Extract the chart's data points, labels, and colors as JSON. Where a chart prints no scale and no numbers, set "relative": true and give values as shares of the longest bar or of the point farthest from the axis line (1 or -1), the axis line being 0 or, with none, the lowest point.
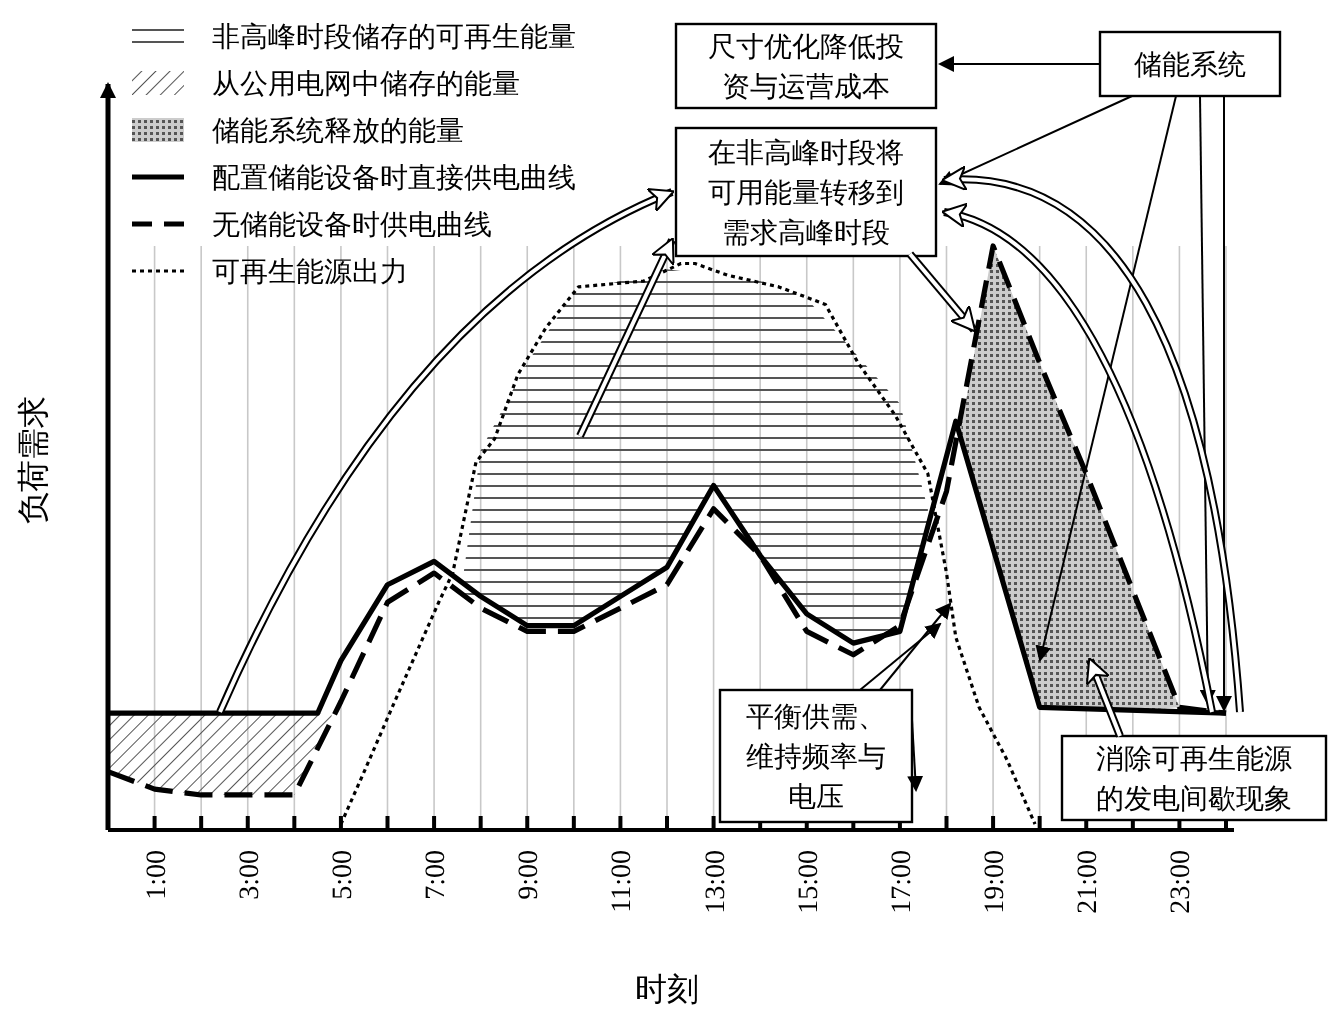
{
  "chart_data": {
    "type": "line",
    "relative": true,
    "xlabel": "时刻",
    "ylabel": "负荷需求",
    "legend": "top left",
    "grid": "x",
    "xlim": [
      0,
      24
    ],
    "xticks": [
      {
        "value": 0,
        "label": null
      },
      {
        "value": 1,
        "label": "1:00"
      },
      {
        "value": 2,
        "label": null
      },
      {
        "value": 3,
        "label": "3:00"
      },
      {
        "value": 4,
        "label": null
      },
      {
        "value": 5,
        "label": "5:00"
      },
      {
        "value": 6,
        "label": null
      },
      {
        "value": 7,
        "label": "7:00"
      },
      {
        "value": 8,
        "label": null
      },
      {
        "value": 9,
        "label": "9:00"
      },
      {
        "value": 10,
        "label": null
      },
      {
        "value": 11,
        "label": "11:00"
      },
      {
        "value": 12,
        "label": null
      },
      {
        "value": 13,
        "label": "13:00"
      },
      {
        "value": 14,
        "label": null
      },
      {
        "value": 15,
        "label": "15:00"
      },
      {
        "value": 16,
        "label": null
      },
      {
        "value": 17,
        "label": "17:00"
      },
      {
        "value": 18,
        "label": null
      },
      {
        "value": 19,
        "label": "19:00"
      },
      {
        "value": 20,
        "label": null
      },
      {
        "value": 21,
        "label": "21:00"
      },
      {
        "value": 22,
        "label": null
      },
      {
        "value": 23,
        "label": "23:00"
      },
      {
        "value": 24,
        "label": null
      }
    ],
    "series": [
      {
        "name": "非高峰时段储存的可再生能量",
        "type": "area",
        "color": "#555555",
        "x": [
          7.6,
          8,
          9,
          10,
          11,
          12,
          13,
          14,
          15,
          16,
          17,
          17.6
        ],
        "values": [
          0.42,
          0.65,
          0.8,
          0.92,
          0.94,
          0.96,
          0.95,
          0.94,
          0.91,
          0.82,
          0.73,
          0.55
        ]
      },
      {
        "name": "从公用电网中储存的能量",
        "type": "area",
        "color": "#555555",
        "x": [
          0,
          1,
          2,
          3,
          4,
          4.5,
          4.8
        ],
        "values": [
          0.2,
          0.2,
          0.2,
          0.2,
          0.2,
          0.2,
          0.2
        ]
      },
      {
        "name": "储能系统释放的能量",
        "type": "area",
        "color": "#555555",
        "x": [
          18.3,
          19,
          20,
          21,
          22,
          23,
          24
        ],
        "values": [
          0.68,
          1.0,
          0.8,
          0.61,
          0.41,
          0.21,
          0.2
        ]
      },
      {
        "name": "配置储能设备时直接供电曲线",
        "type": "line",
        "line_style": "solid",
        "color": "#000000",
        "x": [
          0,
          4.5,
          5,
          6,
          7,
          8,
          9,
          10,
          11,
          12,
          13,
          14,
          15,
          16,
          17,
          18.2,
          20,
          24
        ],
        "values": [
          0.2,
          0.2,
          0.29,
          0.42,
          0.46,
          0.4,
          0.35,
          0.35,
          0.4,
          0.45,
          0.59,
          0.47,
          0.37,
          0.32,
          0.34,
          0.7,
          0.21,
          0.2
        ]
      },
      {
        "name": "无储能设备时供电曲线",
        "type": "line",
        "line_style": "dashed",
        "color": "#000000",
        "x": [
          0,
          1,
          2,
          3,
          4,
          5,
          6,
          7,
          8,
          9,
          10,
          11,
          12,
          13,
          14,
          15,
          16,
          17,
          18,
          19,
          20,
          21,
          22,
          23,
          24
        ],
        "values": [
          0.1,
          0.07,
          0.06,
          0.06,
          0.06,
          0.22,
          0.39,
          0.44,
          0.38,
          0.34,
          0.34,
          0.38,
          0.42,
          0.55,
          0.47,
          0.34,
          0.3,
          0.35,
          0.58,
          1.0,
          0.8,
          0.61,
          0.41,
          0.21,
          0.2
        ]
      },
      {
        "name": "可再生能源出力",
        "type": "line",
        "line_style": "dotted",
        "color": "#000000",
        "x": [
          5,
          5.5,
          6.1,
          7.1,
          7.4,
          7.9,
          8.3,
          8.8,
          9.4,
          10.1,
          11.5,
          12.3,
          12.6,
          13.3,
          14.4,
          15.4,
          16.1,
          16.9,
          17.6,
          18,
          18.2,
          18.7,
          19.3,
          19.9
        ],
        "values": [
          0.01,
          0.1,
          0.21,
          0.39,
          0.44,
          0.63,
          0.67,
          0.78,
          0.86,
          0.93,
          0.94,
          0.97,
          0.97,
          0.95,
          0.93,
          0.9,
          0.8,
          0.71,
          0.61,
          0.44,
          0.33,
          0.21,
          0.12,
          0.01
        ]
      }
    ],
    "annotations": [
      "尺寸优化降低投资与运营成本",
      "储能系统",
      "在非高峰时段将可用能量转移到需求高峰时段",
      "平衡供需、维持频率与电压",
      "消除可再生能源的发电间歇现象"
    ]
  }
}
